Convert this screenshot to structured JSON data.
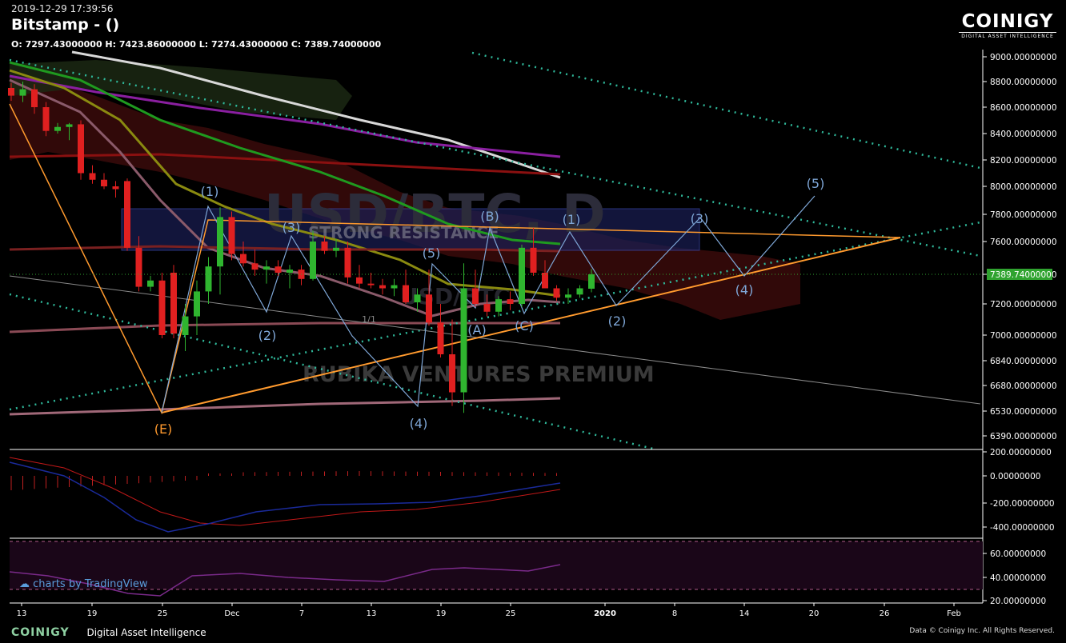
{
  "header": {
    "timestamp": "2019-12-29 17:39:56",
    "title": "Bitstamp -  ()",
    "ohlc": "O: 7297.43000000 H: 7423.86000000 L: 7274.43000000 C: 7389.74000000"
  },
  "brand": {
    "name": "COINIGY",
    "subtitle": "DIGITAL ASSET INTELLIGENCE"
  },
  "watermark": {
    "main": "USD/BTC, D",
    "sub": "USD/BTC",
    "premium": "RUBIKA VENTURES PREMIUM",
    "resistance": "STRONG RESISTANCE"
  },
  "tradingview": "charts by TradingView",
  "footer": {
    "logo": "COINIGY",
    "tagline": "Digital Asset Intelligence",
    "copyright": "Data © Coinigy Inc.  All Rights Reserved."
  },
  "colors": {
    "up": "#2fb52f",
    "down": "#e02020",
    "fib": "#ff9a2e",
    "wave": "#7ea6d6",
    "dotted": "#2fb89a",
    "last": "#2fa32f"
  },
  "chart_data": {
    "type": "candlestick",
    "y_ticks": [
      "9000.00000000",
      "8800.00000000",
      "8600.00000000",
      "8400.00000000",
      "8200.00000000",
      "8000.00000000",
      "7800.00000000",
      "7600.00000000",
      "7389.74000000",
      "7200.00000000",
      "7000.00000000",
      "6840.00000000",
      "6680.00000000",
      "6530.00000000",
      "6390.00000000"
    ],
    "last_price": "7389.74000000",
    "x_labels": [
      "13",
      "19",
      "25",
      "Dec",
      "7",
      "13",
      "19",
      "25",
      "2020",
      "8",
      "14",
      "20",
      "26",
      "Feb"
    ],
    "macd_ticks": [
      "200.00000000",
      "0.00000000",
      "-200.00000000",
      "-400.00000000"
    ],
    "rsi_ticks": [
      "60.00000000",
      "40.00000000",
      "20.00000000"
    ],
    "candles": [
      [
        8750,
        8790,
        8650,
        8690
      ],
      [
        8690,
        8800,
        8640,
        8740
      ],
      [
        8740,
        8780,
        8550,
        8600
      ],
      [
        8600,
        8640,
        8380,
        8420
      ],
      [
        8420,
        8480,
        8400,
        8450
      ],
      [
        8450,
        8480,
        8350,
        8470
      ],
      [
        8470,
        8500,
        8050,
        8100
      ],
      [
        8100,
        8160,
        8020,
        8050
      ],
      [
        8050,
        8100,
        7980,
        8000
      ],
      [
        8000,
        8040,
        7920,
        7980
      ],
      [
        8040,
        8060,
        7540,
        7560
      ],
      [
        7560,
        7640,
        7280,
        7310
      ],
      [
        7310,
        7380,
        7280,
        7350
      ],
      [
        7350,
        7400,
        6980,
        7000
      ],
      [
        7400,
        7450,
        6980,
        7010
      ],
      [
        7000,
        7200,
        6900,
        7120
      ],
      [
        7120,
        7350,
        7000,
        7280
      ],
      [
        7280,
        7500,
        7200,
        7440
      ],
      [
        7440,
        7850,
        7260,
        7780
      ],
      [
        7780,
        7820,
        7480,
        7520
      ],
      [
        7520,
        7600,
        7440,
        7460
      ],
      [
        7460,
        7550,
        7380,
        7420
      ],
      [
        7420,
        7480,
        7330,
        7440
      ],
      [
        7440,
        7480,
        7380,
        7400
      ],
      [
        7400,
        7450,
        7300,
        7420
      ],
      [
        7420,
        7450,
        7320,
        7360
      ],
      [
        7360,
        7680,
        7350,
        7600
      ],
      [
        7600,
        7640,
        7520,
        7540
      ],
      [
        7540,
        7620,
        7500,
        7560
      ],
      [
        7560,
        7600,
        7330,
        7370
      ],
      [
        7370,
        7450,
        7300,
        7330
      ],
      [
        7330,
        7400,
        7300,
        7320
      ],
      [
        7320,
        7360,
        7260,
        7300
      ],
      [
        7300,
        7360,
        7250,
        7320
      ],
      [
        7320,
        7420,
        7200,
        7210
      ],
      [
        7210,
        7300,
        7150,
        7260
      ],
      [
        7260,
        7420,
        7060,
        7080
      ],
      [
        7080,
        7200,
        6860,
        6880
      ],
      [
        6880,
        7100,
        6560,
        6640
      ],
      [
        6640,
        7460,
        6520,
        7300
      ],
      [
        7300,
        7420,
        7180,
        7200
      ],
      [
        7200,
        7260,
        7120,
        7150
      ],
      [
        7150,
        7250,
        7120,
        7230
      ],
      [
        7230,
        7280,
        7160,
        7200
      ],
      [
        7200,
        7580,
        7180,
        7560
      ],
      [
        7560,
        7700,
        7380,
        7400
      ],
      [
        7400,
        7480,
        7320,
        7300
      ],
      [
        7300,
        7320,
        7220,
        7240
      ],
      [
        7240,
        7300,
        7200,
        7260
      ],
      [
        7260,
        7320,
        7240,
        7300
      ],
      [
        7297.43,
        7423.86,
        7274.43,
        7389.74
      ]
    ],
    "wave_labels": [
      "(1)",
      "(2)",
      "(3)",
      "(4)",
      "(5)",
      "(A)",
      "(B)",
      "(C)",
      "(1)",
      "(2)",
      "(3)",
      "(4)",
      "(5)",
      "(E)",
      "1/1"
    ]
  }
}
